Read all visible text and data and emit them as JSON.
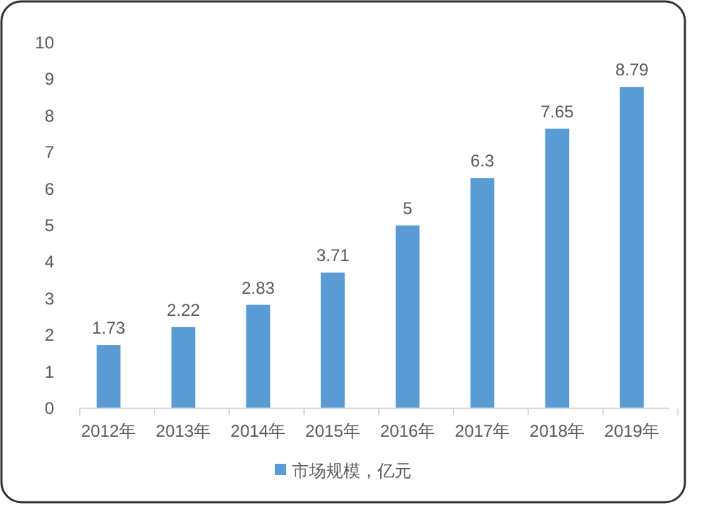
{
  "chart_data": {
    "type": "bar",
    "categories": [
      "2012年",
      "2013年",
      "2014年",
      "2015年",
      "2016年",
      "2017年",
      "2018年",
      "2019年"
    ],
    "series": [
      {
        "name": "市场规模，亿元",
        "color": "#5b9bd5",
        "values": [
          1.73,
          2.22,
          2.83,
          3.71,
          5,
          6.3,
          7.65,
          8.79
        ]
      }
    ],
    "ylim": [
      0,
      10
    ],
    "yticks": [
      0,
      1,
      2,
      3,
      4,
      5,
      6,
      7,
      8,
      9,
      10
    ],
    "data_labels": true,
    "grid": false,
    "legend": "bottom"
  }
}
